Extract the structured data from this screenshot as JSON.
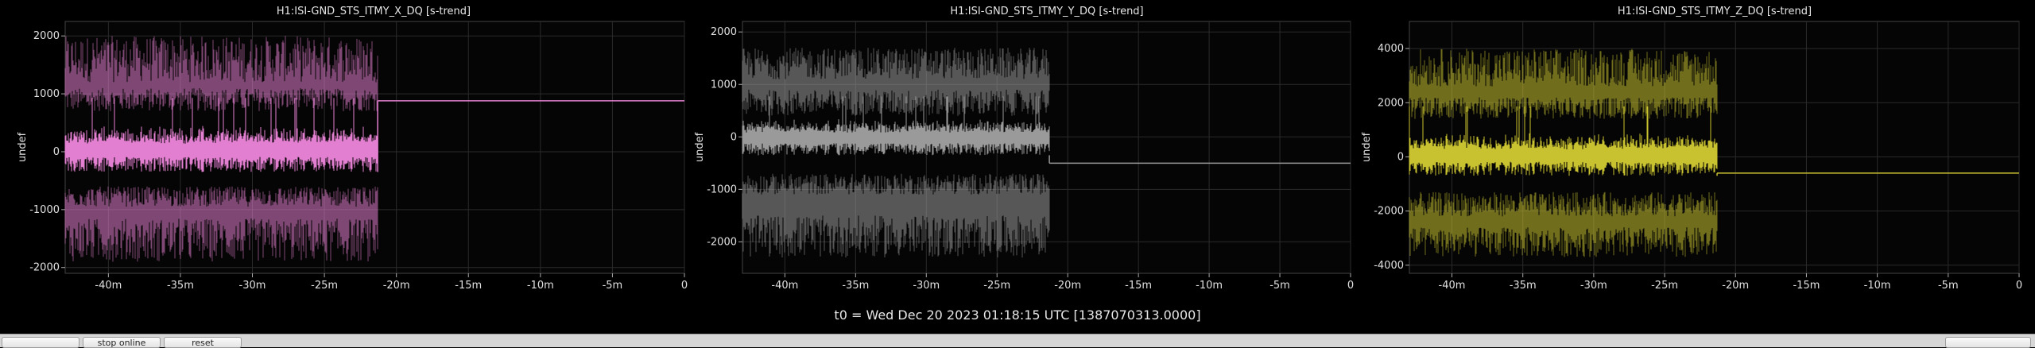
{
  "chart_data": [
    {
      "type": "line",
      "title": "H1:ISI-GND_STS_ITMY_X_DQ [s-trend]",
      "ylabel": "undef",
      "xlabel": "",
      "x_unit": "minutes relative to t0",
      "xlim": [
        -43,
        0
      ],
      "ylim": [
        -2100,
        2250
      ],
      "xticks": [
        -40,
        -35,
        -30,
        -25,
        -20,
        -15,
        -10,
        -5,
        0
      ],
      "xtick_labels": [
        "-40m",
        "-35m",
        "-30m",
        "-25m",
        "-20m",
        "-15m",
        "-10m",
        "-5m",
        "0"
      ],
      "yticks": [
        -2000,
        -1000,
        0,
        1000,
        2000
      ],
      "ytick_labels": [
        "-2000",
        "-1000",
        "0",
        "1000",
        "2000"
      ],
      "grid": true,
      "color": "#e37fd0",
      "data_end_x": -21.3,
      "flat_value": 880,
      "series": [
        {
          "kind": "max",
          "min_range": [
            700,
            1100
          ],
          "max_range": [
            1200,
            2000
          ]
        },
        {
          "kind": "mean",
          "band": [
            -350,
            450
          ]
        },
        {
          "kind": "min",
          "min_range": [
            -1900,
            -1150
          ],
          "max_range": [
            -950,
            -600
          ]
        }
      ]
    },
    {
      "type": "line",
      "title": "H1:ISI-GND_STS_ITMY_Y_DQ [s-trend]",
      "ylabel": "undef",
      "xlabel": "",
      "x_unit": "minutes relative to t0",
      "xlim": [
        -43,
        0
      ],
      "ylim": [
        -2600,
        2200
      ],
      "xticks": [
        -40,
        -35,
        -30,
        -25,
        -20,
        -15,
        -10,
        -5,
        0
      ],
      "xtick_labels": [
        "-40m",
        "-35m",
        "-30m",
        "-25m",
        "-20m",
        "-15m",
        "-10m",
        "-5m",
        "0"
      ],
      "yticks": [
        -2000,
        -1000,
        0,
        1000,
        2000
      ],
      "ytick_labels": [
        "-2000",
        "-1000",
        "0",
        "1000",
        "2000"
      ],
      "grid": true,
      "color": "#9a9a9a",
      "data_end_x": -21.3,
      "flat_value": -500,
      "series": [
        {
          "kind": "max",
          "min_range": [
            400,
            900
          ],
          "max_range": [
            1100,
            1700
          ]
        },
        {
          "kind": "mean",
          "band": [
            -350,
            350
          ]
        },
        {
          "kind": "min",
          "min_range": [
            -2300,
            -1500
          ],
          "max_range": [
            -1100,
            -700
          ]
        }
      ]
    },
    {
      "type": "line",
      "title": "H1:ISI-GND_STS_ITMY_Z_DQ [s-trend]",
      "ylabel": "undef",
      "xlabel": "",
      "x_unit": "minutes relative to t0",
      "xlim": [
        -43,
        0
      ],
      "ylim": [
        -4300,
        5000
      ],
      "xticks": [
        -40,
        -35,
        -30,
        -25,
        -20,
        -15,
        -10,
        -5,
        0
      ],
      "xtick_labels": [
        "-40m",
        "-35m",
        "-30m",
        "-25m",
        "-20m",
        "-15m",
        "-10m",
        "-5m",
        "0"
      ],
      "yticks": [
        -4000,
        -2000,
        0,
        2000,
        4000
      ],
      "ytick_labels": [
        "-4000",
        "-2000",
        "0",
        "2000",
        "4000"
      ],
      "grid": true,
      "color": "#c9c230",
      "data_end_x": -21.3,
      "flat_value": -600,
      "series": [
        {
          "kind": "max",
          "min_range": [
            1400,
            2200
          ],
          "max_range": [
            2600,
            4000
          ]
        },
        {
          "kind": "mean",
          "band": [
            -700,
            900
          ]
        },
        {
          "kind": "min",
          "min_range": [
            -3700,
            -2600
          ],
          "max_range": [
            -2200,
            -1300
          ]
        }
      ]
    }
  ],
  "footer": {
    "t0_label": "t0 = Wed Dec 20 2023 01:18:15 UTC [1387070313.0000]"
  },
  "buttons": {
    "left_label": "",
    "stop_label": "stop online",
    "reset_label": "reset",
    "right_label": ""
  }
}
